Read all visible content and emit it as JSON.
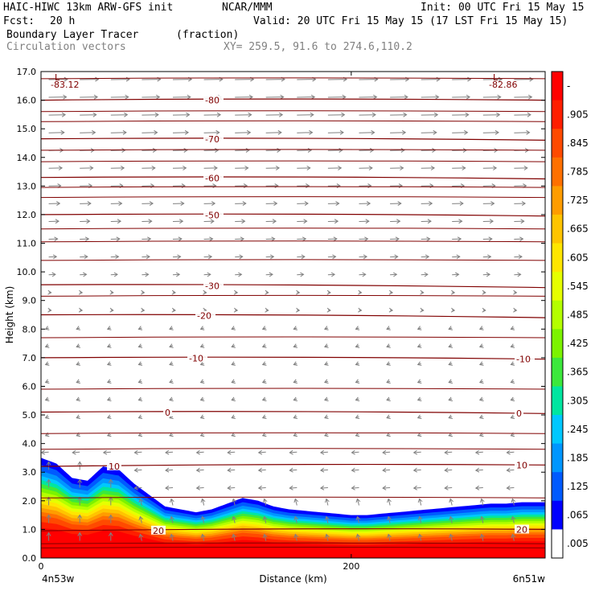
{
  "header": {
    "model": "HAIC-HIWC 13km ARW-GFS init",
    "center": "NCAR/MMM",
    "init": "Init: 00 UTC Fri 15 May 15",
    "fcst_label": "Fcst:",
    "fcst_value": "20 h",
    "valid": "Valid: 20 UTC Fri 15 May 15 (17 LST Fri 15 May 15)",
    "field1_name": "Boundary Layer Tracer",
    "field1_units": "(fraction)",
    "field2_name": "Circulation vectors",
    "xy": "XY= 259.5, 91.6 to 274.6,110.2"
  },
  "chart_data": {
    "type": "area",
    "xlabel": "Distance (km)",
    "ylabel": "Height (km)",
    "ylim": [
      0,
      17
    ],
    "xlim": [
      0,
      325
    ],
    "y_ticks": [
      "0.0",
      "1.0",
      "2.0",
      "3.0",
      "4.0",
      "5.0",
      "6.0",
      "7.0",
      "8.0",
      "9.0",
      "10.0",
      "11.0",
      "12.0",
      "13.0",
      "14.0",
      "15.0",
      "16.0",
      "17.0"
    ],
    "x_ticks": [
      {
        "value": 0,
        "label": "0"
      },
      {
        "value": 200,
        "label": "200"
      }
    ],
    "x_end_labels": {
      "left": "4n53w",
      "right": "6n51w"
    },
    "tracer_top_km": {
      "x": [
        0,
        10,
        20,
        30,
        40,
        50,
        60,
        70,
        80,
        90,
        100,
        110,
        120,
        130,
        140,
        150,
        160,
        170,
        180,
        190,
        200,
        210,
        220,
        230,
        240,
        250,
        260,
        270,
        280,
        290,
        300,
        310,
        325
      ],
      "y": [
        3.5,
        3.3,
        2.8,
        2.7,
        3.2,
        3.1,
        2.6,
        2.2,
        1.8,
        1.7,
        1.6,
        1.7,
        1.9,
        2.1,
        2.0,
        1.8,
        1.7,
        1.65,
        1.6,
        1.55,
        1.5,
        1.5,
        1.55,
        1.6,
        1.65,
        1.7,
        1.75,
        1.8,
        1.85,
        1.9,
        1.9,
        1.95,
        1.95
      ]
    },
    "temperature_contours": [
      {
        "label": "-80",
        "y": [
          16.0,
          16.0
        ]
      },
      {
        "label": "-70",
        "y": [
          14.65,
          14.6
        ]
      },
      {
        "label": "-60",
        "y": [
          13.3,
          13.25
        ]
      },
      {
        "label": "-50",
        "y": [
          12.0,
          11.95
        ]
      },
      {
        "label": "-30",
        "y": [
          9.55,
          9.45
        ]
      },
      {
        "label": "-20",
        "y": [
          8.5,
          8.4
        ]
      },
      {
        "label": "-10",
        "y": [
          7.0,
          6.95
        ]
      },
      {
        "label": "0",
        "y": [
          5.1,
          5.05
        ]
      },
      {
        "label": "10",
        "y": [
          3.2,
          3.25
        ]
      },
      {
        "label": "20",
        "y": [
          0.95,
          1.0
        ]
      }
    ],
    "low_markers": [
      {
        "letter": "L",
        "value": "-83.12",
        "side": "left"
      },
      {
        "letter": "L",
        "value": "-82.86",
        "side": "right"
      }
    ],
    "colorbar": {
      "labels": [
        "-",
        ".905",
        ".845",
        ".785",
        ".725",
        ".665",
        ".605",
        ".545",
        ".485",
        ".425",
        ".365",
        ".305",
        ".245",
        ".185",
        ".125",
        ".065",
        ".005"
      ],
      "colors": [
        "#ff0000",
        "#ff1e00",
        "#ff4a00",
        "#ff7000",
        "#ff9c00",
        "#ffc400",
        "#ffe600",
        "#e6ff00",
        "#b4ff00",
        "#7cf300",
        "#3ce83c",
        "#00e6a0",
        "#00c8ff",
        "#0096ff",
        "#005aff",
        "#0000ff",
        "#ffffff"
      ]
    },
    "colors": {
      "contour": "#800000",
      "vector": "#808080"
    }
  }
}
